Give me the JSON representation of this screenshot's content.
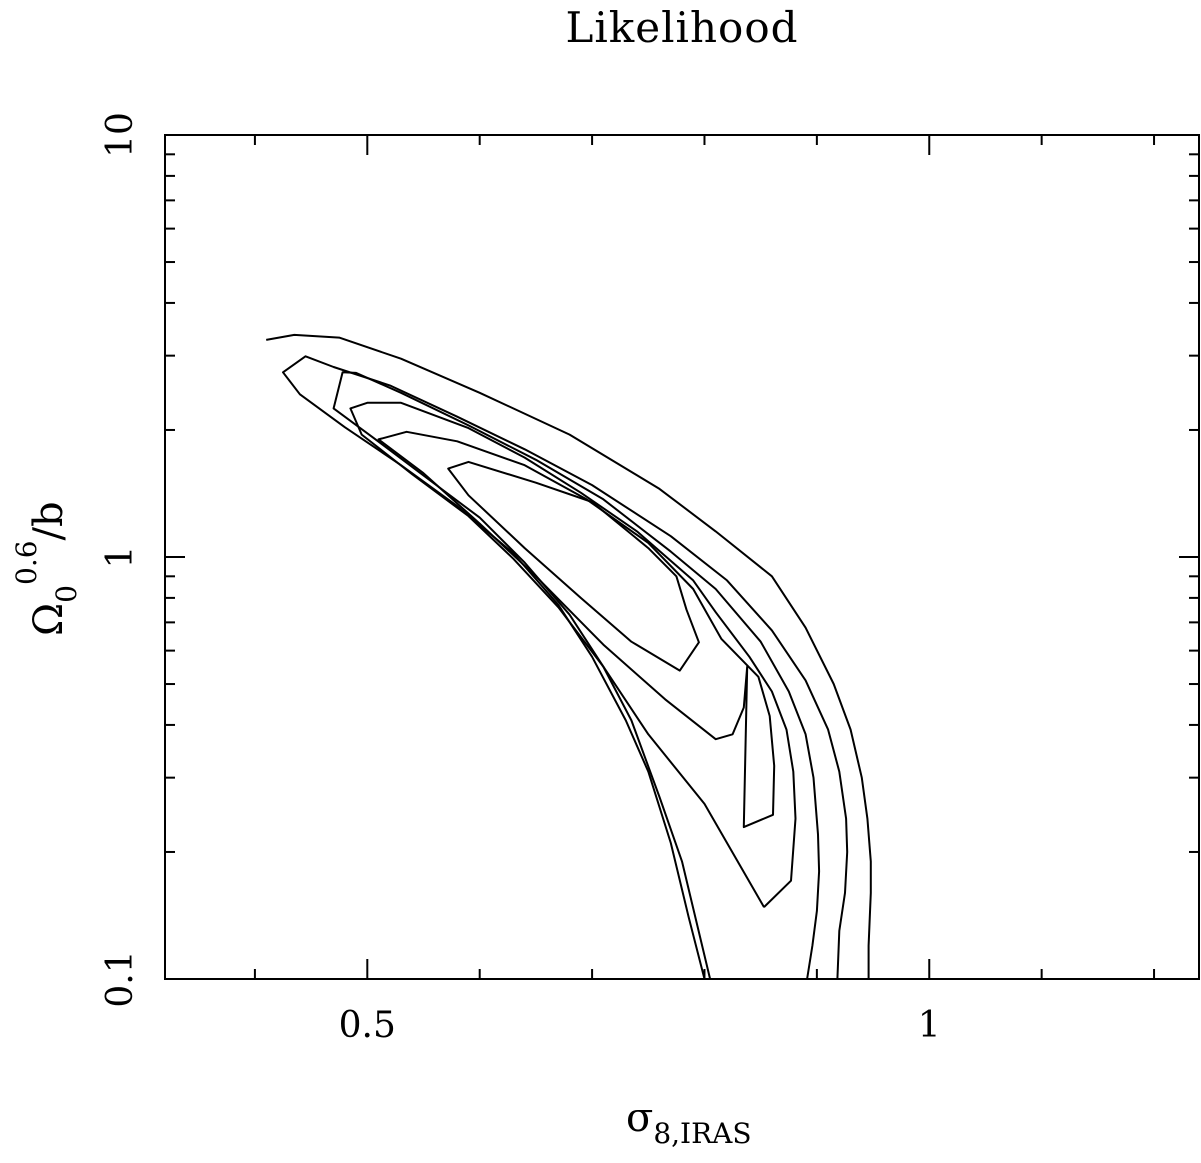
{
  "chart_data": {
    "type": "contour",
    "title": "Likelihood",
    "xlabel": {
      "main": "σ",
      "sub": "8,IRAS"
    },
    "ylabel": {
      "main": "Ω",
      "sub": "0",
      "sup": "0.6",
      "tail": "/b"
    },
    "xscale": "linear",
    "yscale": "log",
    "xlim": [
      0.32,
      1.24
    ],
    "ylim": [
      0.1,
      10
    ],
    "x_ticks": [
      {
        "value": 0.5,
        "label": "0.5"
      },
      {
        "value": 1,
        "label": "1"
      }
    ],
    "y_ticks": [
      {
        "value": 0.1,
        "label": "0.1"
      },
      {
        "value": 1,
        "label": "1"
      },
      {
        "value": 10,
        "label": "10"
      }
    ],
    "grid": false,
    "contours": [
      {
        "level": 1,
        "closed": false,
        "points": [
          [
            0.41,
            3.27
          ],
          [
            0.435,
            3.36
          ],
          [
            0.475,
            3.31
          ],
          [
            0.53,
            2.95
          ],
          [
            0.6,
            2.45
          ],
          [
            0.68,
            1.95
          ],
          [
            0.76,
            1.45
          ],
          [
            0.81,
            1.15
          ],
          [
            0.86,
            0.9
          ],
          [
            0.89,
            0.68
          ],
          [
            0.915,
            0.5
          ],
          [
            0.93,
            0.39
          ],
          [
            0.94,
            0.3
          ],
          [
            0.945,
            0.24
          ],
          [
            0.948,
            0.19
          ],
          [
            0.948,
            0.16
          ],
          [
            0.946,
            0.12
          ],
          [
            0.946,
            0.1
          ]
        ]
      },
      {
        "level": 2,
        "closed": false,
        "points": [
          [
            0.9183,
            0.1
          ],
          [
            0.92,
            0.13
          ],
          [
            0.925,
            0.16
          ],
          [
            0.927,
            0.2
          ],
          [
            0.926,
            0.24
          ],
          [
            0.92,
            0.31
          ],
          [
            0.91,
            0.39
          ],
          [
            0.89,
            0.51
          ],
          [
            0.86,
            0.67
          ],
          [
            0.82,
            0.88
          ],
          [
            0.77,
            1.12
          ],
          [
            0.7,
            1.48
          ],
          [
            0.64,
            1.8
          ],
          [
            0.58,
            2.15
          ],
          [
            0.52,
            2.55
          ],
          [
            0.47,
            2.82
          ],
          [
            0.445,
            2.99
          ],
          [
            0.425,
            2.74
          ],
          [
            0.44,
            2.43
          ],
          [
            0.48,
            2.03
          ],
          [
            0.53,
            1.65
          ],
          [
            0.58,
            1.32
          ],
          [
            0.63,
            1.02
          ],
          [
            0.67,
            0.77
          ],
          [
            0.7,
            0.58
          ],
          [
            0.73,
            0.41
          ],
          [
            0.75,
            0.31
          ],
          [
            0.77,
            0.21
          ],
          [
            0.786,
            0.14
          ],
          [
            0.8,
            0.1
          ]
        ]
      },
      {
        "level": 3,
        "closed": false,
        "points": [
          [
            0.8913,
            0.1
          ],
          [
            0.896,
            0.12
          ],
          [
            0.9,
            0.145
          ],
          [
            0.902,
            0.18
          ],
          [
            0.901,
            0.22
          ],
          [
            0.897,
            0.3
          ],
          [
            0.89,
            0.38
          ],
          [
            0.875,
            0.48
          ],
          [
            0.85,
            0.63
          ],
          [
            0.81,
            0.84
          ],
          [
            0.77,
            1.03
          ],
          [
            0.71,
            1.37
          ],
          [
            0.65,
            1.7
          ],
          [
            0.59,
            2.05
          ],
          [
            0.53,
            2.45
          ],
          [
            0.49,
            2.73
          ],
          [
            0.478,
            2.74
          ],
          [
            0.47,
            2.25
          ],
          [
            0.505,
            1.92
          ],
          [
            0.55,
            1.56
          ],
          [
            0.6,
            1.24
          ],
          [
            0.64,
            0.97
          ],
          [
            0.68,
            0.73
          ],
          [
            0.71,
            0.55
          ],
          [
            0.735,
            0.41
          ],
          [
            0.76,
            0.27
          ],
          [
            0.78,
            0.19
          ],
          [
            0.805,
            0.1
          ]
        ]
      },
      {
        "level": 4,
        "closed": false,
        "points": [
          [
            0.853,
            0.148
          ],
          [
            0.877,
            0.171
          ],
          [
            0.881,
            0.24
          ],
          [
            0.879,
            0.31
          ],
          [
            0.873,
            0.39
          ],
          [
            0.86,
            0.48
          ],
          [
            0.84,
            0.58
          ],
          [
            0.81,
            0.74
          ],
          [
            0.79,
            0.88
          ],
          [
            0.74,
            1.15
          ],
          [
            0.69,
            1.42
          ],
          [
            0.64,
            1.72
          ],
          [
            0.59,
            2.02
          ],
          [
            0.53,
            2.32
          ],
          [
            0.5,
            2.32
          ],
          [
            0.485,
            2.25
          ],
          [
            0.495,
            1.95
          ],
          [
            0.54,
            1.57
          ],
          [
            0.59,
            1.25
          ],
          [
            0.63,
            0.99
          ],
          [
            0.67,
            0.76
          ],
          [
            0.71,
            0.55
          ],
          [
            0.75,
            0.38
          ],
          [
            0.8,
            0.26
          ],
          [
            0.853,
            0.148
          ]
        ]
      },
      {
        "level": 5,
        "closed": true,
        "points": [
          [
            0.835,
            0.229
          ],
          [
            0.861,
            0.245
          ],
          [
            0.862,
            0.32
          ],
          [
            0.858,
            0.42
          ],
          [
            0.848,
            0.52
          ],
          [
            0.815,
            0.64
          ],
          [
            0.79,
            0.84
          ],
          [
            0.75,
            1.08
          ],
          [
            0.695,
            1.37
          ],
          [
            0.64,
            1.65
          ],
          [
            0.58,
            1.88
          ],
          [
            0.535,
            1.98
          ],
          [
            0.51,
            1.9
          ],
          [
            0.55,
            1.58
          ],
          [
            0.6,
            1.2
          ],
          [
            0.65,
            0.9
          ],
          [
            0.71,
            0.62
          ],
          [
            0.765,
            0.46
          ],
          [
            0.81,
            0.37
          ],
          [
            0.825,
            0.38
          ],
          [
            0.835,
            0.44
          ],
          [
            0.838,
            0.55
          ],
          [
            0.835,
            0.229
          ]
        ]
      },
      {
        "level": 6,
        "closed": true,
        "points": [
          [
            0.778,
            0.538
          ],
          [
            0.795,
            0.628
          ],
          [
            0.784,
            0.75
          ],
          [
            0.775,
            0.9
          ],
          [
            0.75,
            1.05
          ],
          [
            0.7,
            1.35
          ],
          [
            0.65,
            1.5
          ],
          [
            0.59,
            1.68
          ],
          [
            0.572,
            1.62
          ],
          [
            0.59,
            1.4
          ],
          [
            0.64,
            1.05
          ],
          [
            0.69,
            0.8
          ],
          [
            0.735,
            0.63
          ],
          [
            0.778,
            0.538
          ]
        ]
      }
    ]
  }
}
